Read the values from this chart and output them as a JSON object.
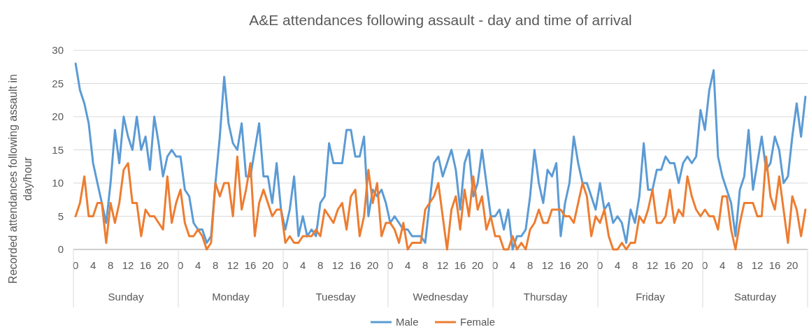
{
  "chart_data": {
    "type": "line",
    "title": "A&E attendances following assault - day and time of arrival",
    "ylabel": "Recorded attendances following assault in day/hour",
    "categories": [
      "0",
      null,
      null,
      null,
      "4",
      null,
      null,
      null,
      "8",
      null,
      null,
      null,
      "12",
      null,
      null,
      null,
      "16",
      null,
      null,
      null,
      "20",
      null,
      null,
      null,
      "0",
      null,
      null,
      null,
      "4",
      null,
      null,
      null,
      "8",
      null,
      null,
      null,
      "12",
      null,
      null,
      null,
      "16",
      null,
      null,
      null,
      "20",
      null,
      null,
      null,
      "0",
      null,
      null,
      null,
      "4",
      null,
      null,
      null,
      "8",
      null,
      null,
      null,
      "12",
      null,
      null,
      null,
      "16",
      null,
      null,
      null,
      "20",
      null,
      null,
      null,
      "0",
      null,
      null,
      null,
      "4",
      null,
      null,
      null,
      "8",
      null,
      null,
      null,
      "12",
      null,
      null,
      null,
      "16",
      null,
      null,
      null,
      "20",
      null,
      null,
      null,
      "0",
      null,
      null,
      null,
      "4",
      null,
      null,
      null,
      "8",
      null,
      null,
      null,
      "12",
      null,
      null,
      null,
      "16",
      null,
      null,
      null,
      "20",
      null,
      null,
      null,
      "0",
      null,
      null,
      null,
      "4",
      null,
      null,
      null,
      "8",
      null,
      null,
      null,
      "12",
      null,
      null,
      null,
      "16",
      null,
      null,
      null,
      "20",
      null,
      null,
      null,
      "0",
      null,
      null,
      null,
      "4",
      null,
      null,
      null,
      "8",
      null,
      null,
      null,
      "12",
      null,
      null,
      null,
      "16",
      null,
      null,
      null,
      "20",
      null,
      null,
      null
    ],
    "annotations": [
      "Sunday",
      "Monday",
      "Tuesday",
      "Wednesday",
      "Thursday",
      "Friday",
      "Saturday"
    ],
    "series": [
      {
        "name": "Male",
        "color": "#5b9bd5",
        "values": [
          28,
          24,
          22,
          19,
          13,
          10,
          7,
          4,
          10,
          18,
          13,
          20,
          17,
          15,
          20,
          15,
          17,
          12,
          20,
          16,
          11,
          14,
          15,
          14,
          14,
          9,
          8,
          4,
          3,
          3,
          1,
          2,
          10,
          17,
          26,
          19,
          16,
          15,
          19,
          11,
          11,
          15,
          19,
          11,
          11,
          7,
          13,
          6,
          3,
          6,
          11,
          2,
          5,
          2,
          3,
          2,
          7,
          8,
          16,
          13,
          13,
          13,
          18,
          18,
          14,
          14,
          17,
          5,
          9,
          8,
          9,
          7,
          4,
          5,
          4,
          3,
          3,
          2,
          2,
          2,
          1,
          7,
          13,
          14,
          11,
          13,
          15,
          12,
          6,
          13,
          15,
          8,
          10,
          15,
          10,
          5,
          5,
          6,
          3,
          6,
          0,
          2,
          2,
          3,
          8,
          15,
          10,
          7,
          12,
          11,
          13,
          2,
          7,
          10,
          17,
          13,
          10,
          10,
          8,
          6,
          10,
          6,
          7,
          4,
          5,
          4,
          1,
          6,
          4,
          8,
          16,
          9,
          9,
          12,
          12,
          14,
          13,
          13,
          10,
          13,
          14,
          13,
          14,
          21,
          18,
          24,
          27,
          14,
          11,
          9,
          7,
          2,
          9,
          11,
          18,
          9,
          13,
          17,
          12,
          13,
          17,
          15,
          10,
          11,
          17,
          22,
          17,
          23
        ]
      },
      {
        "name": "Female",
        "color": "#ed7d31",
        "values": [
          5,
          7,
          11,
          5,
          5,
          7,
          7,
          1,
          7,
          4,
          7,
          12,
          13,
          7,
          7,
          2,
          6,
          5,
          5,
          4,
          3,
          11,
          4,
          7,
          9,
          4,
          2,
          2,
          3,
          2,
          0,
          1,
          10,
          8,
          10,
          10,
          5,
          14,
          6,
          9,
          13,
          2,
          7,
          9,
          7,
          5,
          6,
          6,
          1,
          2,
          1,
          1,
          2,
          2,
          2,
          3,
          2,
          6,
          5,
          4,
          6,
          7,
          3,
          8,
          9,
          2,
          5,
          12,
          7,
          10,
          2,
          4,
          4,
          3,
          1,
          4,
          0,
          1,
          1,
          1,
          6,
          7,
          8,
          10,
          5,
          0,
          6,
          8,
          3,
          9,
          5,
          11,
          6,
          8,
          3,
          5,
          2,
          2,
          0,
          0,
          2,
          0,
          1,
          0,
          3,
          4,
          6,
          4,
          4,
          6,
          6,
          6,
          5,
          5,
          4,
          7,
          10,
          8,
          2,
          5,
          4,
          6,
          2,
          0,
          0,
          1,
          0,
          1,
          1,
          5,
          4,
          6,
          9,
          4,
          4,
          5,
          9,
          4,
          6,
          5,
          11,
          8,
          6,
          5,
          6,
          5,
          5,
          3,
          8,
          8,
          3,
          0,
          4,
          7,
          7,
          7,
          5,
          5,
          14,
          8,
          6,
          11,
          6,
          1,
          8,
          6,
          2,
          6
        ]
      }
    ],
    "ylim": [
      0,
      30
    ],
    "yticks": [
      0,
      5,
      10,
      15,
      20,
      25,
      30
    ],
    "grid": "y",
    "legend": "bottom",
    "line_style": "solid",
    "marker": "none"
  }
}
